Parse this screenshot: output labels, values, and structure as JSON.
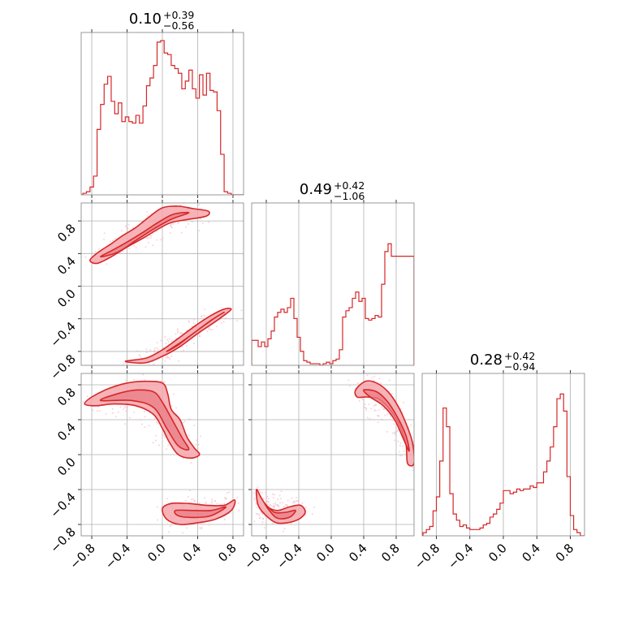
{
  "chart_data": {
    "type": "corner",
    "colors": {
      "main": "#d62728",
      "fill": "#f4a6ab",
      "sample": "#f2b8c6"
    },
    "panels": {
      "h0": {
        "type": "histogram",
        "title": {
          "median": "0.10",
          "plus": "+0.39",
          "minus": "−0.56"
        },
        "xlim": [
          -0.92,
          0.92
        ],
        "x": [
          -0.88,
          -0.84,
          -0.8,
          -0.76,
          -0.72,
          -0.68,
          -0.64,
          -0.6,
          -0.56,
          -0.52,
          -0.48,
          -0.44,
          -0.4,
          -0.36,
          -0.32,
          -0.28,
          -0.24,
          -0.2,
          -0.16,
          -0.12,
          -0.08,
          -0.04,
          0.0,
          0.04,
          0.08,
          0.12,
          0.16,
          0.2,
          0.24,
          0.28,
          0.32,
          0.36,
          0.4,
          0.44,
          0.48,
          0.52,
          0.56,
          0.6,
          0.64,
          0.68,
          0.72,
          0.76,
          0.8,
          0.84
        ],
        "y": [
          0.01,
          0.02,
          0.05,
          0.12,
          0.42,
          0.58,
          0.71,
          0.76,
          0.6,
          0.52,
          0.59,
          0.47,
          0.5,
          0.47,
          0.46,
          0.51,
          0.46,
          0.57,
          0.7,
          0.75,
          0.83,
          0.98,
          0.99,
          0.91,
          0.9,
          0.83,
          0.81,
          0.78,
          0.68,
          0.73,
          0.8,
          0.68,
          0.62,
          0.77,
          0.64,
          0.78,
          0.67,
          0.66,
          0.54,
          0.26,
          0.02,
          0.01,
          0.0,
          0.0
        ]
      },
      "h1": {
        "type": "histogram",
        "title": {
          "median": "0.49",
          "plus": "+0.42",
          "minus": "−1.06"
        },
        "xlim": [
          -0.98,
          1.02
        ],
        "x": [
          -0.96,
          -0.92,
          -0.88,
          -0.84,
          -0.8,
          -0.76,
          -0.72,
          -0.68,
          -0.64,
          -0.6,
          -0.56,
          -0.52,
          -0.48,
          -0.44,
          -0.4,
          -0.36,
          -0.32,
          -0.28,
          -0.24,
          -0.2,
          -0.16,
          -0.12,
          -0.08,
          -0.04,
          0.0,
          0.04,
          0.08,
          0.12,
          0.16,
          0.2,
          0.24,
          0.28,
          0.32,
          0.36,
          0.4,
          0.44,
          0.48,
          0.52,
          0.56,
          0.6,
          0.64,
          0.68,
          0.72,
          0.76,
          0.8,
          0.84,
          0.88,
          0.92,
          0.96,
          1.0
        ],
        "y": [
          0.16,
          0.16,
          0.12,
          0.15,
          0.12,
          0.17,
          0.22,
          0.31,
          0.34,
          0.36,
          0.34,
          0.37,
          0.43,
          0.3,
          0.18,
          0.09,
          0.03,
          0.02,
          0.01,
          0.01,
          0.01,
          0.0,
          0.01,
          0.02,
          0.01,
          0.03,
          0.04,
          0.1,
          0.31,
          0.35,
          0.37,
          0.43,
          0.47,
          0.41,
          0.43,
          0.3,
          0.29,
          0.3,
          0.32,
          0.31,
          0.52,
          0.73,
          0.78,
          0.7,
          0.7,
          0.7,
          0.7,
          0.7,
          0.7,
          0.7
        ]
      },
      "h2": {
        "type": "histogram",
        "title": {
          "median": "0.28",
          "plus": "+0.42",
          "minus": "−0.94"
        },
        "xlim": [
          -0.97,
          0.97
        ],
        "x": [
          -0.94,
          -0.9,
          -0.86,
          -0.82,
          -0.78,
          -0.74,
          -0.7,
          -0.66,
          -0.62,
          -0.58,
          -0.54,
          -0.5,
          -0.46,
          -0.42,
          -0.38,
          -0.34,
          -0.3,
          -0.26,
          -0.22,
          -0.18,
          -0.14,
          -0.1,
          -0.06,
          -0.02,
          0.02,
          0.06,
          0.1,
          0.14,
          0.18,
          0.22,
          0.26,
          0.3,
          0.34,
          0.38,
          0.42,
          0.46,
          0.5,
          0.54,
          0.58,
          0.62,
          0.66,
          0.7,
          0.74,
          0.78,
          0.82,
          0.86,
          0.9
        ],
        "y": [
          0.02,
          0.04,
          0.06,
          0.16,
          0.25,
          0.48,
          0.82,
          0.7,
          0.27,
          0.14,
          0.1,
          0.06,
          0.07,
          0.05,
          0.04,
          0.04,
          0.04,
          0.05,
          0.07,
          0.08,
          0.12,
          0.14,
          0.17,
          0.21,
          0.29,
          0.29,
          0.27,
          0.28,
          0.3,
          0.29,
          0.3,
          0.3,
          0.32,
          0.31,
          0.34,
          0.34,
          0.41,
          0.48,
          0.57,
          0.7,
          0.88,
          0.91,
          0.8,
          0.38,
          0.13,
          0.04,
          0.02
        ]
      },
      "s10": {
        "type": "contour",
        "xlim": [
          -0.92,
          0.92
        ],
        "ylim": [
          -0.97,
          1.02
        ]
      },
      "s20": {
        "type": "contour",
        "xlim": [
          -0.92,
          0.92
        ],
        "ylim": [
          -0.93,
          0.93
        ]
      },
      "s21": {
        "type": "contour",
        "xlim": [
          -0.98,
          1.02
        ],
        "ylim": [
          -0.93,
          0.93
        ]
      }
    },
    "ticks": {
      "col0_x": [
        "−0.8",
        "−0.4",
        "0.0",
        "0.4",
        "0.8"
      ],
      "col1_x": [
        "−0.8",
        "−0.4",
        "0.0",
        "0.4",
        "0.8"
      ],
      "col2_x": [
        "−0.8",
        "−0.4",
        "0.0",
        "0.4",
        "0.8"
      ],
      "row1_y": [
        "−0.8",
        "−0.4",
        "0.0",
        "0.4",
        "0.8"
      ],
      "row2_y": [
        "−0.8",
        "−0.4",
        "0.0",
        "0.4",
        "0.8"
      ]
    }
  }
}
